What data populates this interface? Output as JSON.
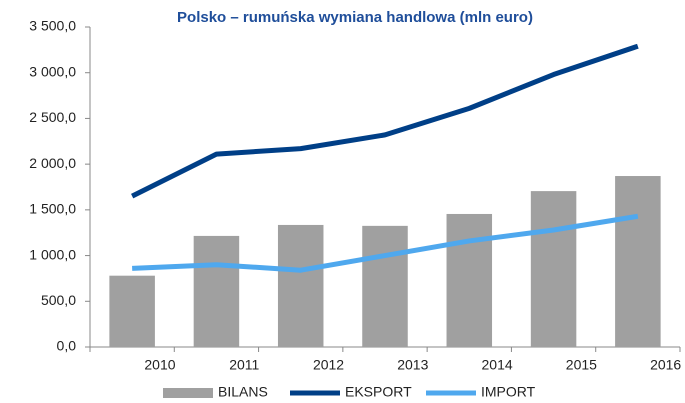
{
  "chart_data": {
    "type": "bar_line",
    "title": "Polsko – rumuńska wymiana handlowa (mln euro)",
    "categories": [
      "2010",
      "2011",
      "2012",
      "2013",
      "2014",
      "2015",
      "2016"
    ],
    "series": [
      {
        "name": "BILANS",
        "type": "bar",
        "color": "#a0a0a0",
        "values": [
          780,
          1215,
          1335,
          1325,
          1455,
          1705,
          1870
        ]
      },
      {
        "name": "EKSPORT",
        "type": "line",
        "color": "#003f87",
        "values": [
          1650,
          2110,
          2170,
          2320,
          2610,
          2980,
          3290
        ]
      },
      {
        "name": "IMPORT",
        "type": "line",
        "color": "#4fa8ee",
        "values": [
          860,
          900,
          840,
          1000,
          1160,
          1280,
          1430
        ]
      }
    ],
    "ylim": [
      0,
      3500
    ],
    "yticks": [
      {
        "value": 0,
        "label": "0,0"
      },
      {
        "value": 500,
        "label": "500,0"
      },
      {
        "value": 1000,
        "label": "1 000,0"
      },
      {
        "value": 1500,
        "label": "1 500,0"
      },
      {
        "value": 2000,
        "label": "2 000,0"
      },
      {
        "value": 2500,
        "label": "2 500,0"
      },
      {
        "value": 3000,
        "label": "3 000,0"
      },
      {
        "value": 3500,
        "label": "3 500,0"
      }
    ],
    "legend": "bottom"
  }
}
